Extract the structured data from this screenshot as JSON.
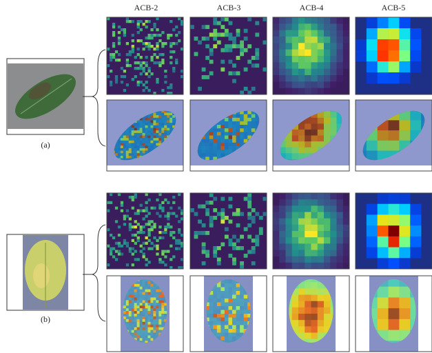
{
  "figure": {
    "column_headers": [
      "ACB-2",
      "ACB-3",
      "ACB-4",
      "ACB-5"
    ],
    "panels": [
      {
        "label": "(a)"
      },
      {
        "label": "(b)"
      }
    ]
  }
}
